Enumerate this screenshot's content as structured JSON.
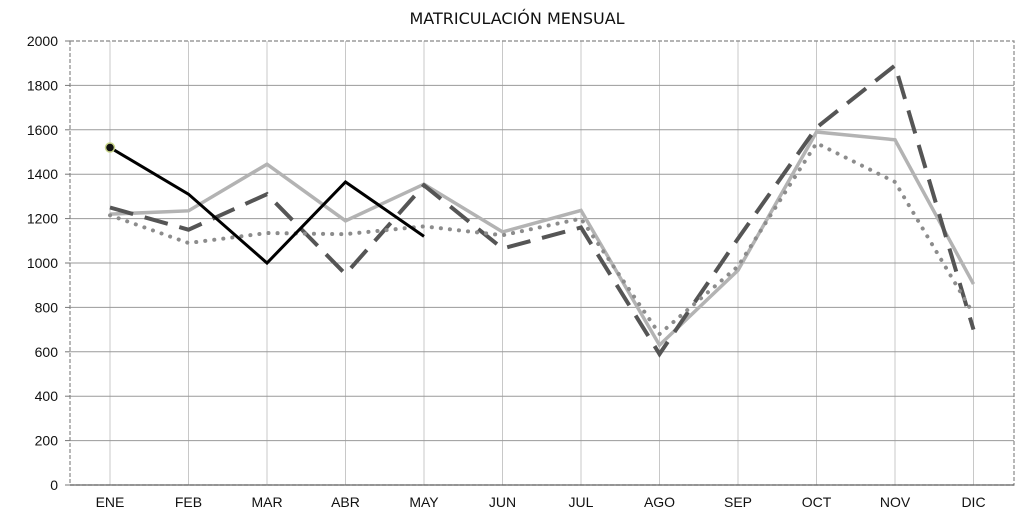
{
  "chart_data": {
    "type": "line",
    "title": "MATRICULACIÓN MENSUAL",
    "xlabel": "",
    "ylabel": "",
    "categories": [
      "ENE",
      "FEB",
      "MAR",
      "ABR",
      "MAY",
      "JUN",
      "JUL",
      "AGO",
      "SEP",
      "OCT",
      "NOV",
      "DIC"
    ],
    "ylim": [
      0,
      2000
    ],
    "yticks": [
      0,
      200,
      400,
      600,
      800,
      1000,
      1200,
      1400,
      1600,
      1800,
      2000
    ],
    "grid": true,
    "legend": "none",
    "series": [
      {
        "style": "solid-light",
        "color": "#b3b3b3",
        "values": [
          1220,
          1235,
          1445,
          1190,
          1355,
          1140,
          1237,
          630,
          967,
          1590,
          1555,
          905
        ]
      },
      {
        "style": "dashed",
        "color": "#555555",
        "values": [
          1250,
          1150,
          1310,
          950,
          1350,
          1065,
          1160,
          590,
          1110,
          1610,
          1890,
          700
        ]
      },
      {
        "style": "dotted",
        "color": "#8c8c8c",
        "values": [
          1215,
          1090,
          1135,
          1130,
          1165,
          1125,
          1200,
          680,
          985,
          1540,
          1365,
          770
        ]
      },
      {
        "style": "solid-dark",
        "color": "#000000",
        "values": [
          1520,
          1310,
          1000,
          1365,
          1120,
          null,
          null,
          null,
          null,
          null,
          null,
          null
        ],
        "marker_first": true
      }
    ]
  }
}
